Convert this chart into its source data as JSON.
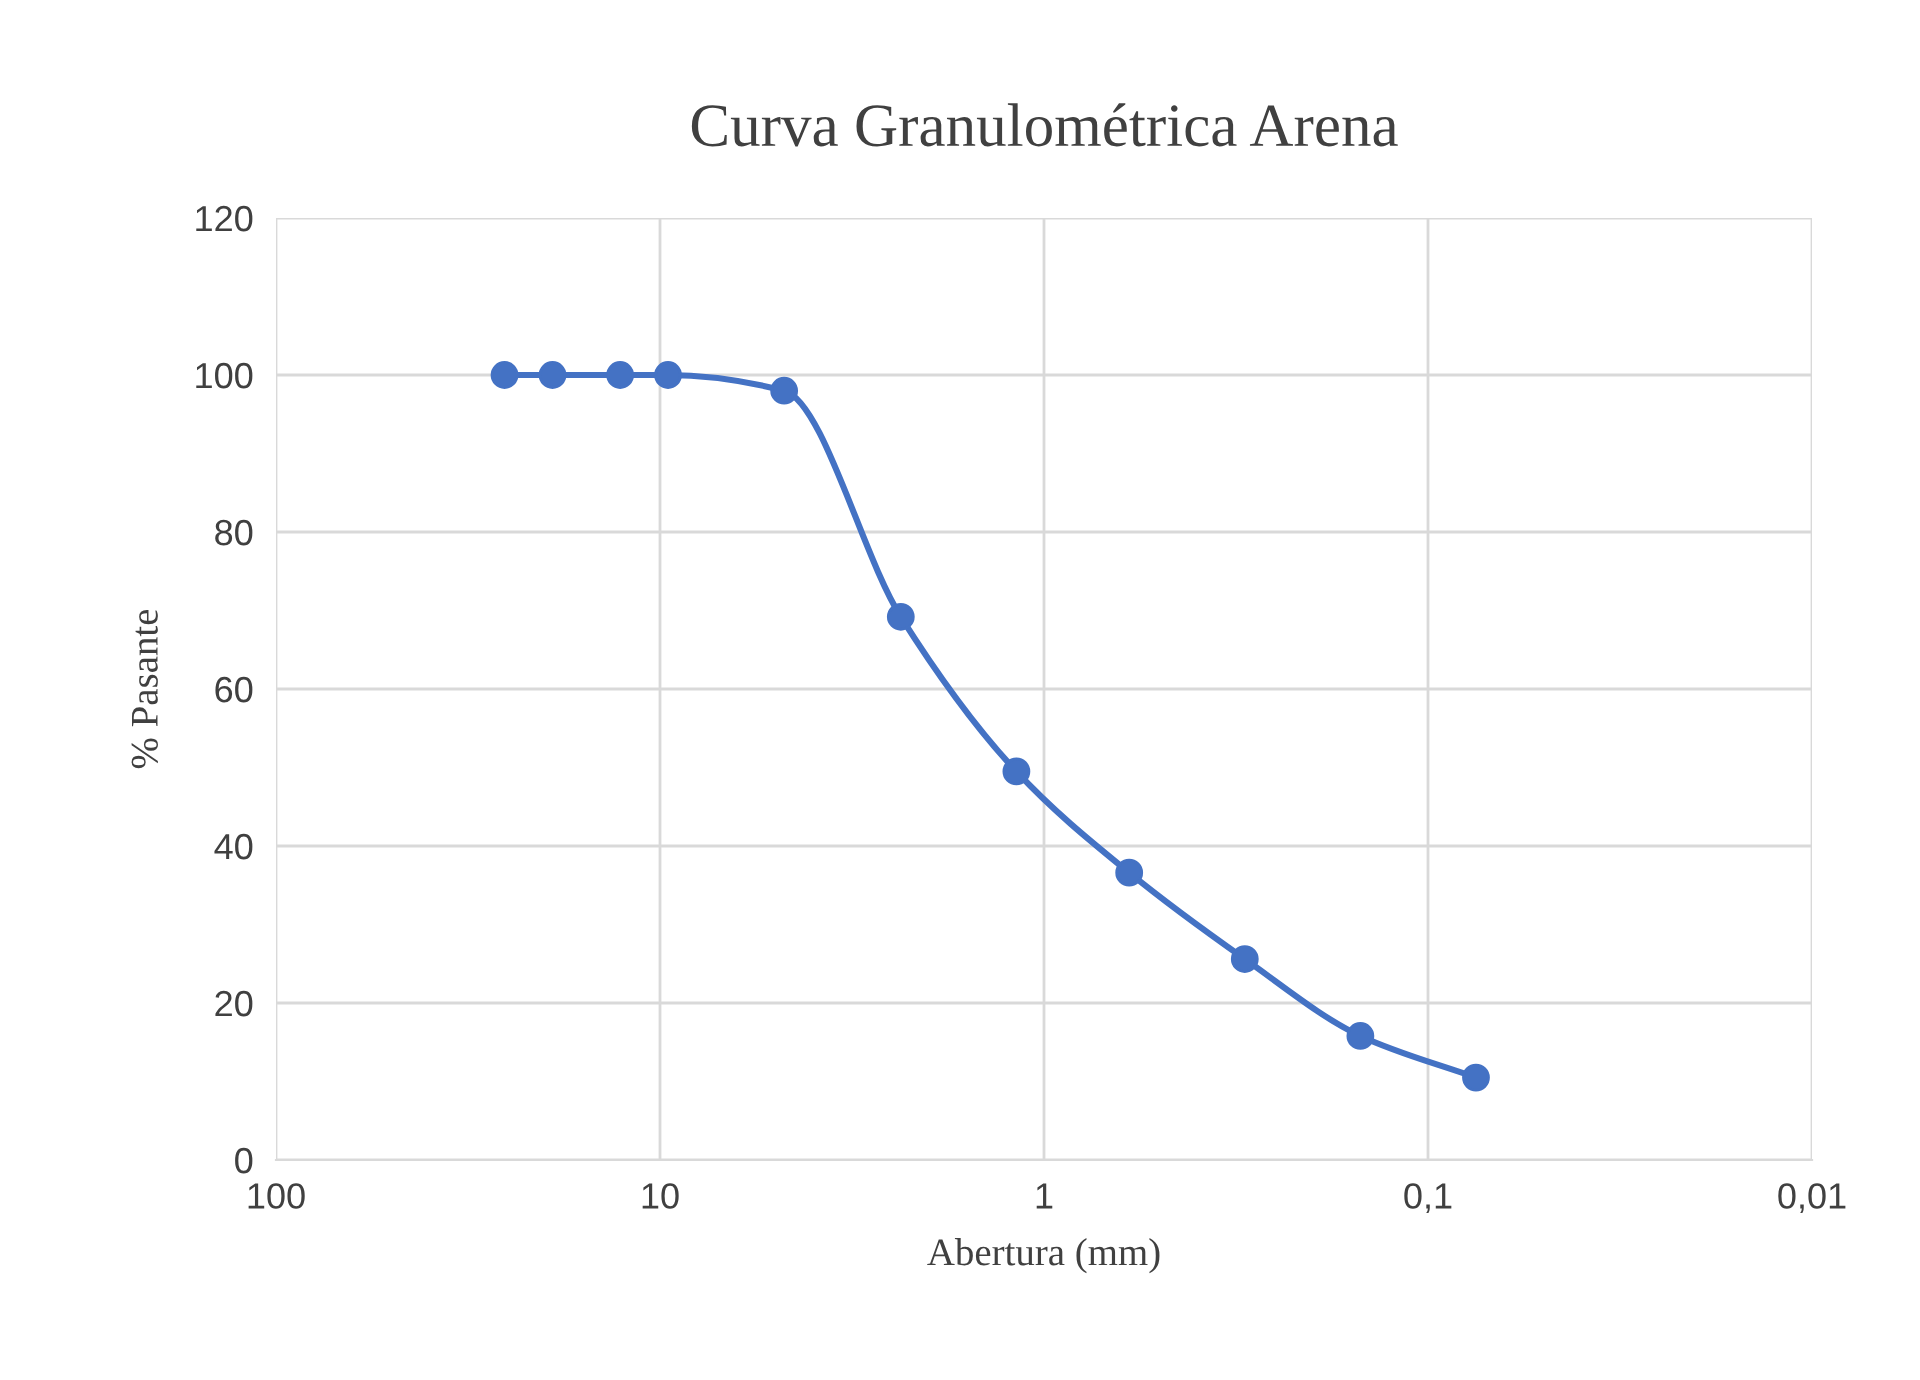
{
  "chart_data": {
    "type": "line",
    "title": "Curva Granulométrica Arena",
    "xlabel": "Abertura (mm)",
    "ylabel": "% Pasante",
    "x": [
      25.4,
      19.05,
      12.7,
      9.53,
      4.75,
      2.36,
      1.18,
      0.6,
      0.3,
      0.15,
      0.075
    ],
    "series": [
      {
        "color": "#4472c4",
        "values": [
          100,
          100,
          100,
          100,
          98,
          69.2,
          49.5,
          36.6,
          25.6,
          15.8,
          10.5
        ]
      }
    ],
    "log": "x",
    "xlim": [
      100,
      0.01
    ],
    "xticks": [
      {
        "value": 100,
        "label": "100"
      },
      {
        "value": 10,
        "label": "10"
      },
      {
        "value": 1,
        "label": "1"
      },
      {
        "value": 0.1,
        "label": "0,1"
      },
      {
        "value": 0.01,
        "label": "0,01"
      }
    ],
    "ylim": [
      0,
      120
    ],
    "yticks": [
      0,
      20,
      40,
      60,
      80,
      100,
      120
    ],
    "grid": true,
    "marker": "circle",
    "line_style": "solid"
  }
}
